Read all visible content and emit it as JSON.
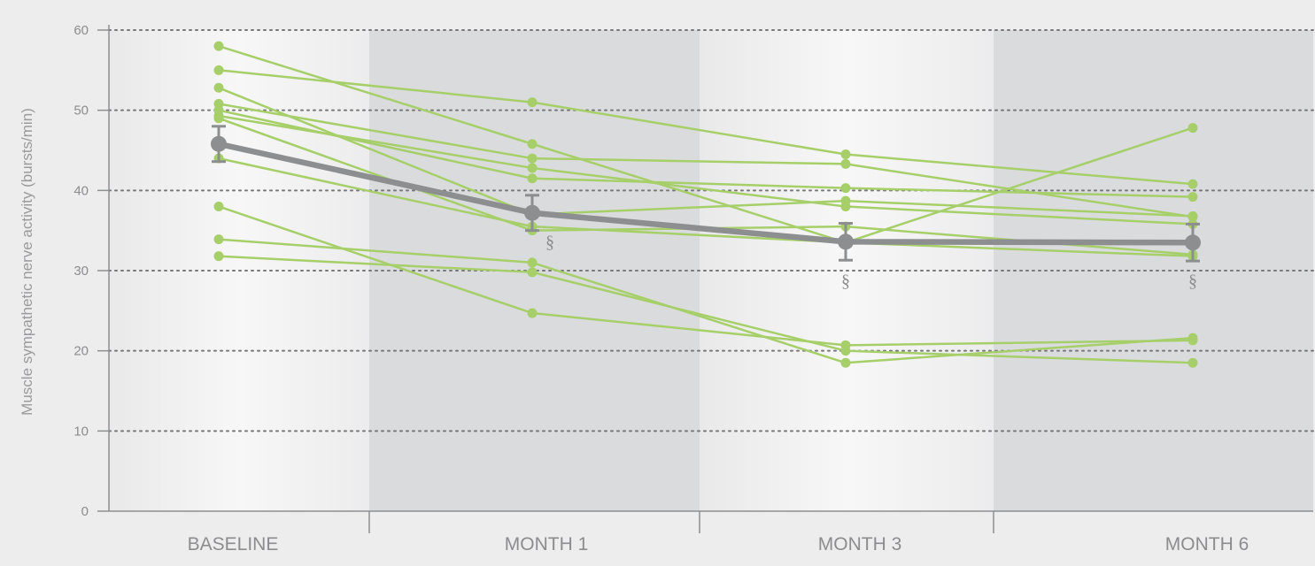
{
  "chart_data": {
    "type": "line",
    "title": "",
    "xlabel": "",
    "ylabel": "Muscle sympathetic nerve activity (bursts/min)",
    "categories": [
      "BASELINE",
      "MONTH 1",
      "MONTH 3",
      "MONTH 6"
    ],
    "ylim": [
      0,
      60
    ],
    "yticks": [
      "0",
      "10",
      "20",
      "30",
      "40",
      "50",
      "60"
    ],
    "grid": "horizontal dotted",
    "colors": {
      "individual": "#a6cf6a",
      "mean": "#8d8e90",
      "band_light": "#f4f4f4",
      "band_dark": "#dadbdd"
    },
    "series": [
      {
        "values": [
          58,
          45.8,
          33.5,
          31.8
        ]
      },
      {
        "values": [
          55,
          51,
          44.5,
          40.8
        ]
      },
      {
        "values": [
          52.8,
          37,
          38.7,
          36.8
        ]
      },
      {
        "values": [
          50.8,
          44,
          43.3,
          36.7
        ]
      },
      {
        "values": [
          50,
          41.5,
          40.3,
          39.2
        ]
      },
      {
        "values": [
          49.3,
          42.8,
          38,
          35.8
        ]
      },
      {
        "values": [
          49,
          35,
          35.5,
          32
        ]
      },
      {
        "values": [
          44,
          35.5,
          33.5,
          47.8
        ]
      },
      {
        "values": [
          38,
          24.7,
          20.7,
          21.3
        ]
      },
      {
        "values": [
          33.9,
          31,
          18.5,
          21.6
        ]
      },
      {
        "values": [
          31.8,
          29.8,
          20,
          18.5
        ]
      }
    ],
    "mean": {
      "values": [
        45.8,
        37.2,
        33.6,
        33.5
      ],
      "error": [
        2.2,
        2.2,
        2.3,
        2.3
      ]
    },
    "annotations": [
      {
        "category": "MONTH 1",
        "text": "§"
      },
      {
        "category": "MONTH 3",
        "text": "§"
      },
      {
        "category": "MONTH 6",
        "text": "§"
      }
    ]
  }
}
